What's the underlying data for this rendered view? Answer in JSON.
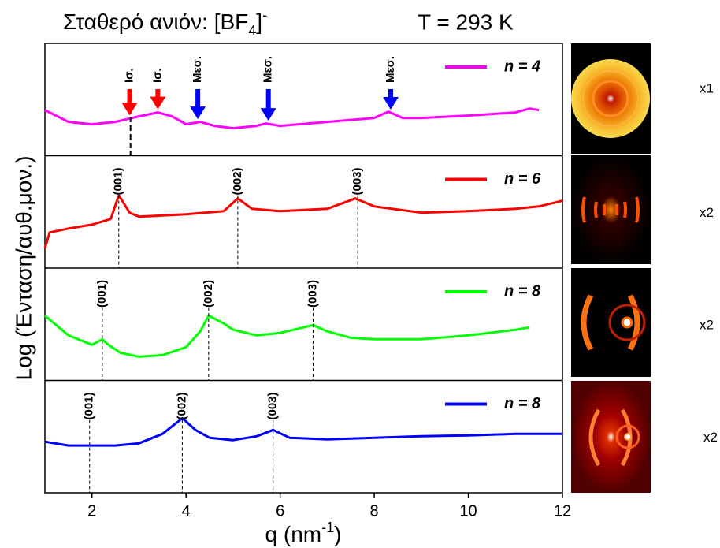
{
  "chart_data": {
    "type": "line",
    "title": {
      "main": "Σταθερό ανιόν: [BF",
      "sub": "4",
      "close": "]",
      "sup": "-"
    },
    "temperature": "T = 293 K",
    "xlabel": {
      "main": "q (nm",
      "sup": "-1",
      "close": ")"
    },
    "ylabel": "Log (Ένταση/αυθ.μον.)",
    "xlim": [
      1,
      12
    ],
    "xticks": [
      2,
      4,
      6,
      8,
      10,
      12
    ],
    "panels": [
      {
        "ylim": [
          0,
          100
        ],
        "image_label": "x1",
        "series": [
          {
            "name": "n = 4",
            "color": "#ff00ff",
            "x": [
              1.0,
              1.5,
              2.0,
              2.5,
              3.0,
              3.4,
              3.7,
              4.0,
              4.3,
              4.6,
              5.0,
              5.5,
              5.7,
              6.0,
              7.0,
              8.0,
              8.3,
              8.6,
              9.0,
              10.0,
              11.0,
              11.3,
              11.5
            ],
            "values": [
              40.6,
              30.1,
              28.0,
              30.1,
              35.0,
              38.5,
              35.0,
              28.0,
              30.1,
              26.6,
              24.5,
              26.6,
              28.7,
              26.6,
              30.1,
              33.6,
              39.2,
              33.6,
              33.6,
              35.7,
              38.5,
              42.0,
              40.6
            ]
          }
        ],
        "annotations": [
          {
            "x": 2.82,
            "style": "dashed"
          },
          {
            "text": "Ισ.",
            "x": 2.8,
            "color": "#ff0000",
            "style": "arrow"
          },
          {
            "text": "Ισ.",
            "x": 3.4,
            "color": "#ff0000",
            "style": "arrow"
          },
          {
            "text": "Μεσ.",
            "x": 4.25,
            "color": "#0000ff",
            "style": "arrow"
          },
          {
            "text": "Μεσ.",
            "x": 5.75,
            "color": "#0000ff",
            "style": "arrow"
          },
          {
            "text": "Μεσ.",
            "x": 8.35,
            "color": "#0000ff",
            "style": "arrow"
          }
        ]
      },
      {
        "ylim": [
          0,
          100
        ],
        "image_label": "x2",
        "series": [
          {
            "name": "n = 6",
            "color": "#ff0000",
            "x": [
              1.0,
              1.1,
              1.5,
              2.0,
              2.4,
              2.57,
              2.8,
              3.0,
              4.0,
              4.8,
              5.1,
              5.4,
              6.0,
              7.0,
              7.6,
              8.0,
              9.0,
              10.0,
              11.0,
              11.5,
              12.0
            ],
            "values": [
              17.6,
              31.7,
              35.2,
              38.7,
              43.7,
              64.8,
              49.3,
              45.8,
              47.9,
              50.7,
              62.0,
              52.8,
              50.7,
              52.8,
              62.0,
              54.9,
              49.3,
              50.7,
              52.8,
              54.9,
              59.9
            ]
          }
        ],
        "annotations": [
          {
            "text": "(001)",
            "x": 2.57,
            "style": "dashed"
          },
          {
            "text": "(002)",
            "x": 5.1,
            "style": "dashed"
          },
          {
            "text": "(003)",
            "x": 7.65,
            "style": "dashed"
          }
        ]
      },
      {
        "ylim": [
          0,
          100
        ],
        "image_label": "x2",
        "series": [
          {
            "name": "n = 8",
            "color": "#00ff00",
            "x": [
              1.0,
              1.5,
              2.0,
              2.22,
              2.35,
              2.6,
              3.0,
              3.5,
              4.0,
              4.3,
              4.48,
              4.8,
              5.0,
              5.5,
              6.0,
              6.5,
              6.7,
              7.0,
              7.5,
              8.0,
              9.0,
              10.0,
              11.0,
              11.3
            ],
            "values": [
              57.7,
              40.1,
              31.7,
              36.6,
              31.7,
              24.6,
              21.1,
              22.5,
              29.6,
              43.7,
              57.7,
              50.7,
              45.1,
              40.1,
              42.3,
              47.2,
              49.3,
              43.7,
              38.0,
              36.6,
              36.6,
              40.1,
              45.1,
              47.2
            ]
          }
        ],
        "annotations": [
          {
            "text": "(001)",
            "x": 2.22,
            "style": "dashed"
          },
          {
            "text": "(002)",
            "x": 4.48,
            "style": "dashed"
          },
          {
            "text": "(003)",
            "x": 6.7,
            "style": "dashed"
          }
        ]
      },
      {
        "ylim": [
          0,
          100
        ],
        "image_label": "x2",
        "series": [
          {
            "name": "n = 8",
            "color": "#0000ff",
            "x": [
              1.0,
              1.5,
              2.0,
              2.5,
              3.0,
              3.5,
              3.92,
              4.2,
              4.5,
              5.0,
              5.5,
              5.85,
              6.2,
              7.0,
              8.0,
              9.0,
              10.0,
              11.0,
              12.0
            ],
            "values": [
              45.5,
              42.0,
              42.0,
              42.0,
              44.1,
              52.4,
              66.4,
              55.9,
              49.0,
              46.9,
              50.3,
              55.9,
              49.0,
              47.6,
              49.0,
              50.3,
              51.0,
              52.4,
              52.4
            ]
          }
        ],
        "annotations": [
          {
            "text": "(001)",
            "x": 1.95,
            "style": "dashed"
          },
          {
            "text": "(002)",
            "x": 3.92,
            "style": "dashed"
          },
          {
            "text": "(003)",
            "x": 5.85,
            "style": "dashed"
          }
        ]
      }
    ]
  }
}
